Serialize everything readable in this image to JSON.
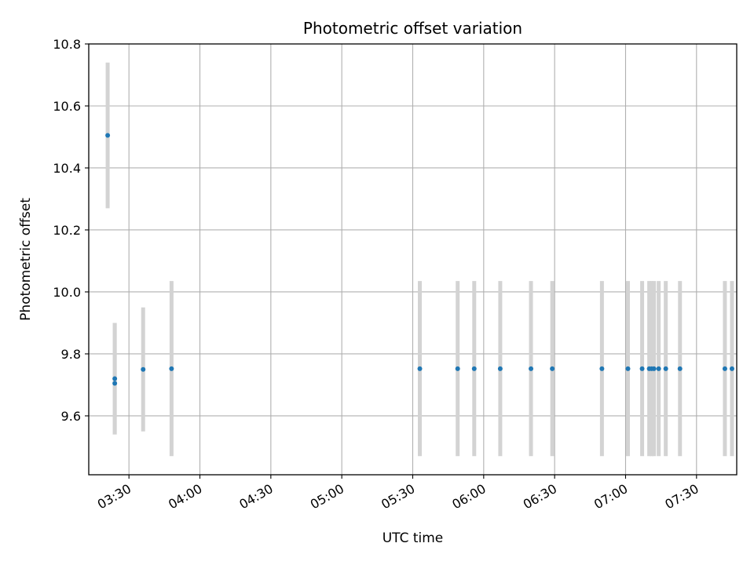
{
  "chart_data": {
    "type": "scatter",
    "title": "Photometric offset variation",
    "xlabel": "UTC time",
    "ylabel": "Photometric offset",
    "xlim": [
      "03:13",
      "07:47"
    ],
    "ylim": [
      9.41,
      10.8
    ],
    "x_ticks": [
      "03:30",
      "04:00",
      "04:30",
      "05:00",
      "05:30",
      "06:00",
      "06:30",
      "07:00",
      "07:30"
    ],
    "y_ticks": [
      "9.6",
      "9.8",
      "10.0",
      "10.2",
      "10.4",
      "10.6",
      "10.8"
    ],
    "grid": true,
    "colors": {
      "point": "#1f77b4",
      "errorbar": "#d3d3d3",
      "grid": "#b0b0b0"
    },
    "points": [
      {
        "t": "03:21",
        "y": 10.505,
        "lo": 10.27,
        "hi": 10.74
      },
      {
        "t": "03:24",
        "y": 9.705,
        "lo": 9.54,
        "hi": 9.9
      },
      {
        "t": "03:24",
        "y": 9.72,
        "lo": 9.54,
        "hi": 9.9
      },
      {
        "t": "03:36",
        "y": 9.75,
        "lo": 9.55,
        "hi": 9.95
      },
      {
        "t": "03:48",
        "y": 9.752,
        "lo": 9.47,
        "hi": 10.035
      },
      {
        "t": "05:33",
        "y": 9.752,
        "lo": 9.47,
        "hi": 10.035
      },
      {
        "t": "05:49",
        "y": 9.752,
        "lo": 9.47,
        "hi": 10.035
      },
      {
        "t": "05:56",
        "y": 9.752,
        "lo": 9.47,
        "hi": 10.035
      },
      {
        "t": "06:07",
        "y": 9.752,
        "lo": 9.47,
        "hi": 10.035
      },
      {
        "t": "06:20",
        "y": 9.752,
        "lo": 9.47,
        "hi": 10.035
      },
      {
        "t": "06:29",
        "y": 9.752,
        "lo": 9.47,
        "hi": 10.035
      },
      {
        "t": "06:50",
        "y": 9.752,
        "lo": 9.47,
        "hi": 10.035
      },
      {
        "t": "07:01",
        "y": 9.752,
        "lo": 9.47,
        "hi": 10.035
      },
      {
        "t": "07:07",
        "y": 9.752,
        "lo": 9.47,
        "hi": 10.035
      },
      {
        "t": "07:10",
        "y": 9.752,
        "lo": 9.47,
        "hi": 10.035
      },
      {
        "t": "07:11",
        "y": 9.752,
        "lo": 9.47,
        "hi": 10.035
      },
      {
        "t": "07:12",
        "y": 9.752,
        "lo": 9.47,
        "hi": 10.035
      },
      {
        "t": "07:14",
        "y": 9.752,
        "lo": 9.47,
        "hi": 10.035
      },
      {
        "t": "07:17",
        "y": 9.752,
        "lo": 9.47,
        "hi": 10.035
      },
      {
        "t": "07:23",
        "y": 9.752,
        "lo": 9.47,
        "hi": 10.035
      },
      {
        "t": "07:42",
        "y": 9.752,
        "lo": 9.47,
        "hi": 10.035
      },
      {
        "t": "07:45",
        "y": 9.752,
        "lo": 9.47,
        "hi": 10.035
      }
    ]
  }
}
